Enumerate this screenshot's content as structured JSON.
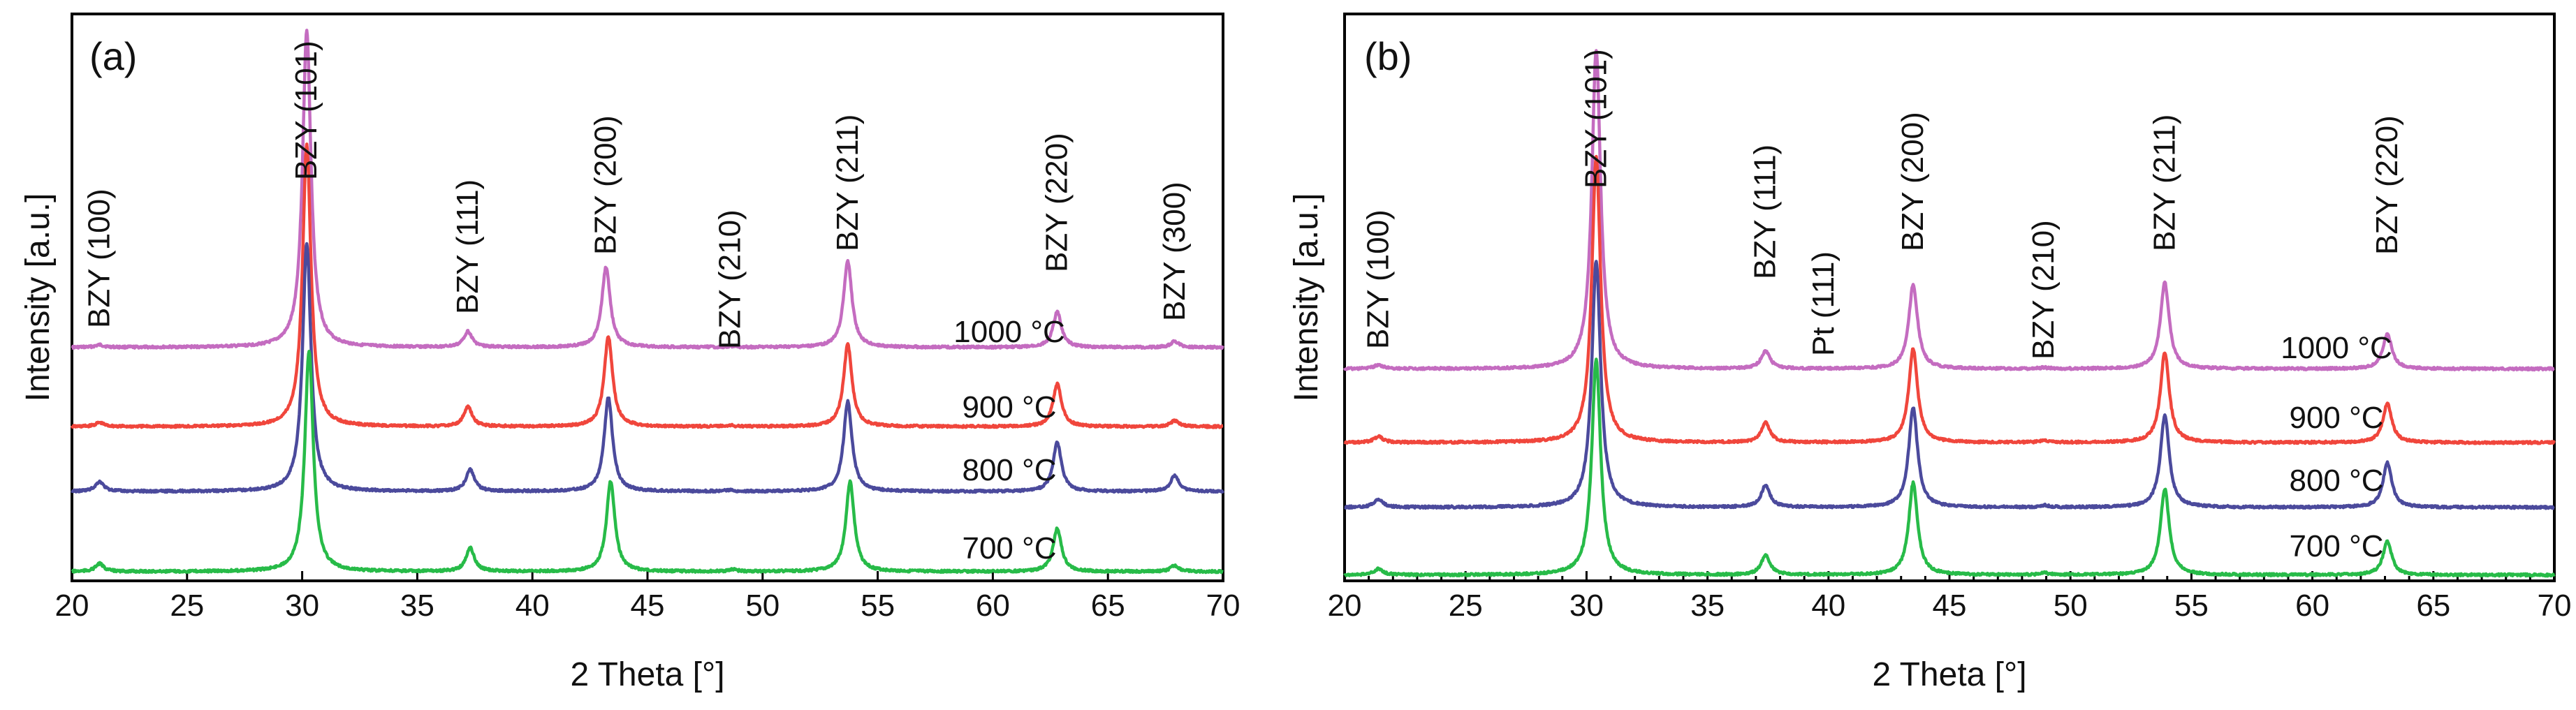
{
  "chart_data": [
    {
      "type": "line",
      "panel_label": "(a)",
      "xlabel": "2 Theta [°]",
      "ylabel": "Intensity [a.u.]",
      "xlim": [
        20,
        70
      ],
      "xticks": [
        20,
        25,
        30,
        35,
        40,
        45,
        50,
        55,
        60,
        65,
        70
      ],
      "series": [
        {
          "name": "1000 °C",
          "color": "#c46cc0",
          "baseline": 0.8,
          "peaks": [
            [
              21.2,
              0.12
            ],
            [
              30.2,
              16.2
            ],
            [
              37.2,
              0.8
            ],
            [
              43.2,
              4.1
            ],
            [
              48.6,
              0.05
            ],
            [
              53.7,
              4.4
            ],
            [
              62.8,
              1.8
            ],
            [
              67.9,
              0.3
            ]
          ]
        },
        {
          "name": "900 °C",
          "color": "#f0463c",
          "baseline": 0.6,
          "peaks": [
            [
              21.2,
              0.2
            ],
            [
              30.2,
              14.4
            ],
            [
              37.2,
              1.0
            ],
            [
              43.3,
              4.6
            ],
            [
              48.6,
              0.05
            ],
            [
              53.7,
              4.2
            ],
            [
              62.8,
              2.2
            ],
            [
              67.9,
              0.3
            ]
          ]
        },
        {
          "name": "800 °C",
          "color": "#4b4a9c",
          "baseline": 0.5,
          "peaks": [
            [
              21.2,
              0.5
            ],
            [
              30.2,
              12.7
            ],
            [
              37.3,
              1.1
            ],
            [
              43.3,
              4.8
            ],
            [
              48.6,
              0.05
            ],
            [
              53.7,
              4.6
            ],
            [
              62.8,
              2.5
            ],
            [
              67.9,
              0.8
            ]
          ]
        },
        {
          "name": "700 °C",
          "color": "#27bb48",
          "baseline": 0.4,
          "peaks": [
            [
              21.2,
              0.4
            ],
            [
              30.3,
              11.3
            ],
            [
              37.3,
              1.2
            ],
            [
              43.4,
              4.6
            ],
            [
              48.7,
              0.1
            ],
            [
              53.8,
              4.6
            ],
            [
              62.8,
              2.2
            ],
            [
              67.9,
              0.3
            ]
          ]
        }
      ],
      "peak_labels": [
        {
          "text": "BZY (100)",
          "x": 21.2
        },
        {
          "text": "BZY (101)",
          "x": 30.2
        },
        {
          "text": "BZY (111)",
          "x": 37.2
        },
        {
          "text": "BZY (200)",
          "x": 43.2
        },
        {
          "text": "BZY (210)",
          "x": 48.6
        },
        {
          "text": "BZY (211)",
          "x": 53.7
        },
        {
          "text": "BZY (220)",
          "x": 62.8
        },
        {
          "text": "BZY (300)",
          "x": 67.9
        }
      ]
    },
    {
      "type": "line",
      "panel_label": "(b)",
      "xlabel": "2 Theta [°]",
      "ylabel": "Intensity [a.u.]",
      "xlim": [
        20,
        70
      ],
      "xticks": [
        20,
        25,
        30,
        35,
        40,
        45,
        50,
        55,
        60,
        65,
        70
      ],
      "series": [
        {
          "name": "1000 °C",
          "color": "#c46cc0",
          "baseline": 0.7,
          "peaks": [
            [
              21.4,
              0.2
            ],
            [
              30.4,
              16.3
            ],
            [
              37.4,
              0.9
            ],
            [
              43.5,
              4.3
            ],
            [
              48.9,
              0.05
            ],
            [
              53.9,
              4.4
            ],
            [
              63.1,
              1.8
            ]
          ]
        },
        {
          "name": "900 °C",
          "color": "#f0463c",
          "baseline": 0.5,
          "peaks": [
            [
              21.4,
              0.3
            ],
            [
              30.4,
              14.6
            ],
            [
              37.4,
              1.0
            ],
            [
              43.5,
              4.8
            ],
            [
              48.9,
              0.1
            ],
            [
              53.9,
              4.6
            ],
            [
              63.1,
              2.0
            ]
          ]
        },
        {
          "name": "800 °C",
          "color": "#4b4a9c",
          "baseline": 0.4,
          "peaks": [
            [
              21.4,
              0.4
            ],
            [
              30.4,
              12.6
            ],
            [
              37.4,
              1.1
            ],
            [
              43.5,
              5.1
            ],
            [
              48.9,
              0.1
            ],
            [
              53.9,
              4.7
            ],
            [
              63.1,
              2.3
            ]
          ]
        },
        {
          "name": "700 °C",
          "color": "#27bb48",
          "baseline": 0.3,
          "peaks": [
            [
              21.4,
              0.3
            ],
            [
              30.4,
              11.0
            ],
            [
              37.4,
              1.0
            ],
            [
              43.5,
              4.7
            ],
            [
              48.9,
              0.1
            ],
            [
              53.9,
              4.4
            ],
            [
              63.1,
              1.7
            ]
          ]
        }
      ],
      "peak_labels": [
        {
          "text": "BZY (100)",
          "x": 21.4
        },
        {
          "text": "BZY (101)",
          "x": 30.4
        },
        {
          "text": "BZY (111)",
          "x": 37.4
        },
        {
          "text": "Pt (111)",
          "x": 39.8
        },
        {
          "text": "BZY (200)",
          "x": 43.5
        },
        {
          "text": "BZY (210)",
          "x": 48.9
        },
        {
          "text": "BZY (211)",
          "x": 53.9
        },
        {
          "text": "BZY (220)",
          "x": 63.1
        }
      ]
    }
  ]
}
